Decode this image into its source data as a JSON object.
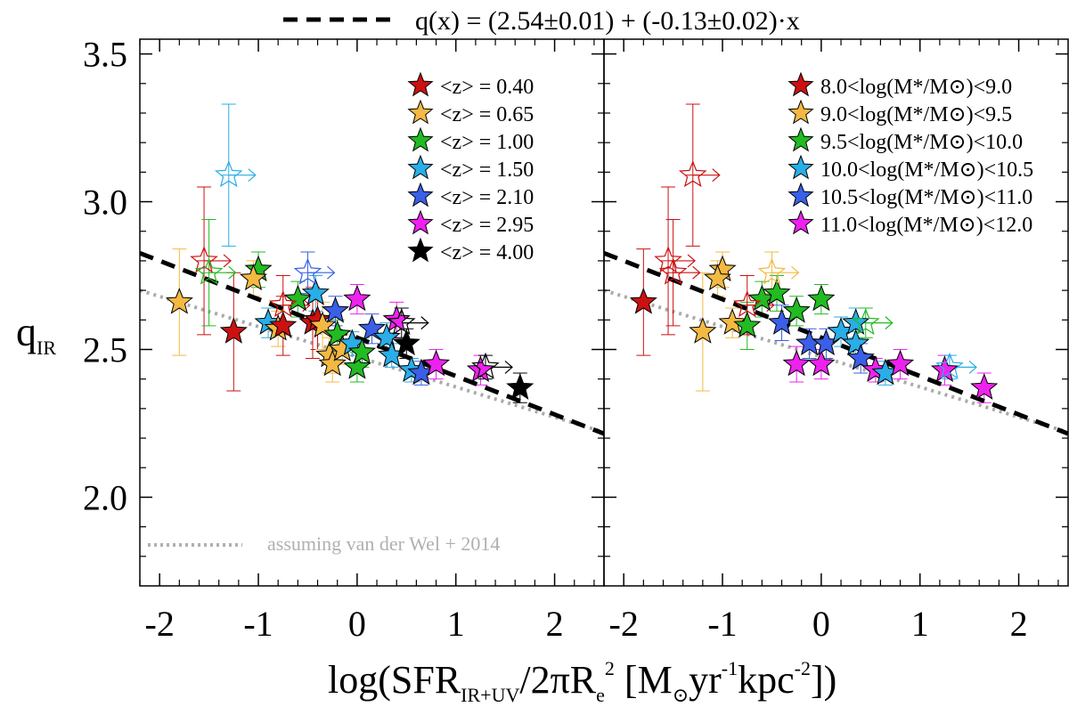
{
  "figure": {
    "fit_legend": "q(x) = (2.54±0.01) + (-0.13±0.02)·x",
    "ylabel_main": "q",
    "ylabel_sub": "IR",
    "xlabel_parts": [
      {
        "t": "log(SFR",
        "s": "n"
      },
      {
        "t": "IR+UV",
        "s": "sub"
      },
      {
        "t": "/2πR",
        "s": "n"
      },
      {
        "t": "e",
        "s": "sub"
      },
      {
        "t": "2",
        "s": "sup"
      },
      {
        "t": " [M",
        "s": "n"
      },
      {
        "t": "⊙",
        "s": "sub"
      },
      {
        "t": "yr",
        "s": "n"
      },
      {
        "t": "-1",
        "s": "sup"
      },
      {
        "t": "kpc",
        "s": "n"
      },
      {
        "t": "-2",
        "s": "sup"
      },
      {
        "t": "])",
        "s": "n"
      }
    ],
    "dotted_note": "assuming van der Wel + 2014"
  },
  "chart_data": [
    {
      "type": "scatter",
      "panel": "left",
      "xlim": [
        -2.2,
        2.5
      ],
      "ylim": [
        1.7,
        3.55
      ],
      "xticks": [
        -2,
        -1,
        0,
        1,
        2
      ],
      "xtick_labels": [
        "-2",
        "-1",
        "0",
        "1",
        "2"
      ],
      "yticks": [
        2.0,
        2.5,
        3.0,
        3.5
      ],
      "ytick_labels": [
        "2.0",
        "2.5",
        "3.0",
        "3.5"
      ],
      "fit_line": {
        "intercept": 2.54,
        "slope": -0.13,
        "style": "dashed",
        "color": "#000000"
      },
      "dotted_line": {
        "points": [
          [
            -2.2,
            2.7
          ],
          [
            2.5,
            2.22
          ]
        ],
        "color": "#aaaaaa"
      },
      "legend": [
        {
          "label": "<z> = 0.40",
          "color": "#cc1111"
        },
        {
          "label": "<z> = 0.65",
          "color": "#f4b942"
        },
        {
          "label": "<z> = 1.00",
          "color": "#22bb22"
        },
        {
          "label": "<z> = 1.50",
          "color": "#29aee8"
        },
        {
          "label": "<z> = 2.10",
          "color": "#3a5fe8"
        },
        {
          "label": "<z> = 2.95",
          "color": "#ee22ee"
        },
        {
          "label": "<z> = 4.00",
          "color": "#000000"
        }
      ],
      "points": [
        {
          "x": -1.8,
          "y": 2.66,
          "err": 0.18,
          "color": "#f4b942",
          "filled": true
        },
        {
          "x": -1.25,
          "y": 2.56,
          "err": 0.2,
          "color": "#cc1111",
          "filled": true
        },
        {
          "x": -1.0,
          "y": 2.77,
          "err": 0.06,
          "color": "#22bb22",
          "filled": true
        },
        {
          "x": -1.05,
          "y": 2.74,
          "err": 0.06,
          "color": "#f4b942",
          "filled": true
        },
        {
          "x": -0.9,
          "y": 2.59,
          "err": 0.05,
          "color": "#29aee8",
          "filled": true
        },
        {
          "x": -0.8,
          "y": 2.57,
          "err": 0.06,
          "color": "#f4b942",
          "filled": true
        },
        {
          "x": -0.75,
          "y": 2.58,
          "err": 0.1,
          "color": "#cc1111",
          "filled": true
        },
        {
          "x": -0.6,
          "y": 2.67,
          "err": 0.06,
          "color": "#22bb22",
          "filled": true
        },
        {
          "x": -0.45,
          "y": 2.59,
          "err": 0.12,
          "color": "#cc1111",
          "filled": true
        },
        {
          "x": -0.4,
          "y": 2.6,
          "err": 0.1,
          "color": "#cc1111",
          "filled": true
        },
        {
          "x": -0.42,
          "y": 2.69,
          "err": 0.06,
          "color": "#29aee8",
          "filled": true
        },
        {
          "x": -0.35,
          "y": 2.58,
          "err": 0.08,
          "color": "#f4b942",
          "filled": true
        },
        {
          "x": -0.28,
          "y": 2.48,
          "err": 0.06,
          "color": "#f4b942",
          "filled": true
        },
        {
          "x": -0.25,
          "y": 2.45,
          "err": 0.06,
          "color": "#f4b942",
          "filled": true
        },
        {
          "x": -0.2,
          "y": 2.55,
          "err": 0.05,
          "color": "#22bb22",
          "filled": true
        },
        {
          "x": -0.22,
          "y": 2.63,
          "err": 0.05,
          "color": "#3a5fe8",
          "filled": true
        },
        {
          "x": -0.15,
          "y": 2.5,
          "err": 0.05,
          "color": "#f4b942",
          "filled": true
        },
        {
          "x": -0.05,
          "y": 2.52,
          "err": 0.04,
          "color": "#29aee8",
          "filled": true
        },
        {
          "x": 0.0,
          "y": 2.44,
          "err": 0.05,
          "color": "#22bb22",
          "filled": true
        },
        {
          "x": 0.05,
          "y": 2.49,
          "err": 0.05,
          "color": "#22bb22",
          "filled": true
        },
        {
          "x": 0.0,
          "y": 2.67,
          "err": 0.05,
          "color": "#ee22ee",
          "filled": true
        },
        {
          "x": 0.15,
          "y": 2.57,
          "err": 0.05,
          "color": "#3a5fe8",
          "filled": true
        },
        {
          "x": 0.3,
          "y": 2.54,
          "err": 0.05,
          "color": "#29aee8",
          "filled": true
        },
        {
          "x": 0.35,
          "y": 2.48,
          "err": 0.04,
          "color": "#29aee8",
          "filled": true
        },
        {
          "x": 0.4,
          "y": 2.6,
          "err": 0.06,
          "color": "#ee22ee",
          "filled": true
        },
        {
          "x": 0.5,
          "y": 2.52,
          "err": 0.05,
          "color": "#000000",
          "filled": true
        },
        {
          "x": 0.55,
          "y": 2.43,
          "err": 0.04,
          "color": "#29aee8",
          "filled": true
        },
        {
          "x": 0.65,
          "y": 2.42,
          "err": 0.04,
          "color": "#3a5fe8",
          "filled": true
        },
        {
          "x": 0.8,
          "y": 2.45,
          "err": 0.05,
          "color": "#ee22ee",
          "filled": true
        },
        {
          "x": 1.25,
          "y": 2.43,
          "err": 0.05,
          "color": "#ee22ee",
          "filled": true
        },
        {
          "x": 1.65,
          "y": 2.37,
          "err": 0.05,
          "color": "#000000",
          "filled": true
        },
        {
          "x": -1.3,
          "y": 3.09,
          "err": 0.24,
          "color": "#29aee8",
          "filled": false
        },
        {
          "x": -1.55,
          "y": 2.8,
          "err": 0.25,
          "color": "#cc1111",
          "filled": false
        },
        {
          "x": -1.5,
          "y": 2.76,
          "err": 0.18,
          "color": "#22bb22",
          "filled": false
        },
        {
          "x": -0.5,
          "y": 2.76,
          "err": 0.07,
          "color": "#3a5fe8",
          "filled": false
        },
        {
          "x": -0.75,
          "y": 2.65,
          "err": 0.1,
          "color": "#cc1111",
          "filled": false
        },
        {
          "x": 0.45,
          "y": 2.59,
          "err": 0.05,
          "color": "#000000",
          "filled": false
        },
        {
          "x": 1.3,
          "y": 2.44,
          "err": 0.04,
          "color": "#000000",
          "filled": false
        }
      ]
    },
    {
      "type": "scatter",
      "panel": "right",
      "xlim": [
        -2.2,
        2.5
      ],
      "ylim": [
        1.7,
        3.55
      ],
      "xticks": [
        -2,
        -1,
        0,
        1,
        2
      ],
      "xtick_labels": [
        "-2",
        "-1",
        "0",
        "1",
        "2"
      ],
      "yticks": [
        2.0,
        2.5,
        3.0,
        3.5
      ],
      "fit_line": {
        "intercept": 2.54,
        "slope": -0.13,
        "style": "dashed",
        "color": "#000000"
      },
      "dotted_line": {
        "points": [
          [
            -2.2,
            2.7
          ],
          [
            2.5,
            2.22
          ]
        ],
        "color": "#aaaaaa"
      },
      "legend": [
        {
          "label": "8.0<log(M*/M⊙)<9.0",
          "color": "#cc1111"
        },
        {
          "label": "9.0<log(M*/M⊙)<9.5",
          "color": "#f4b942"
        },
        {
          "label": "9.5<log(M*/M⊙)<10.0",
          "color": "#22bb22"
        },
        {
          "label": "10.0<log(M*/M⊙)<10.5",
          "color": "#29aee8"
        },
        {
          "label": "10.5<log(M*/M⊙)<11.0",
          "color": "#3a5fe8"
        },
        {
          "label": "11.0<log(M*/M⊙)<12.0",
          "color": "#ee22ee"
        }
      ],
      "points": [
        {
          "x": -1.8,
          "y": 2.66,
          "err": 0.18,
          "color": "#cc1111",
          "filled": true
        },
        {
          "x": -1.0,
          "y": 2.77,
          "err": 0.06,
          "color": "#f4b942",
          "filled": true
        },
        {
          "x": -1.05,
          "y": 2.74,
          "err": 0.06,
          "color": "#f4b942",
          "filled": true
        },
        {
          "x": -1.2,
          "y": 2.56,
          "err": 0.2,
          "color": "#f4b942",
          "filled": true
        },
        {
          "x": -0.9,
          "y": 2.59,
          "err": 0.05,
          "color": "#f4b942",
          "filled": true
        },
        {
          "x": -0.75,
          "y": 2.58,
          "err": 0.08,
          "color": "#22bb22",
          "filled": true
        },
        {
          "x": -0.6,
          "y": 2.67,
          "err": 0.06,
          "color": "#22bb22",
          "filled": true
        },
        {
          "x": -0.45,
          "y": 2.69,
          "err": 0.06,
          "color": "#22bb22",
          "filled": true
        },
        {
          "x": -0.4,
          "y": 2.59,
          "err": 0.06,
          "color": "#3a5fe8",
          "filled": true
        },
        {
          "x": -0.25,
          "y": 2.63,
          "err": 0.05,
          "color": "#22bb22",
          "filled": true
        },
        {
          "x": -0.25,
          "y": 2.45,
          "err": 0.06,
          "color": "#ee22ee",
          "filled": true
        },
        {
          "x": -0.12,
          "y": 2.52,
          "err": 0.05,
          "color": "#3a5fe8",
          "filled": true
        },
        {
          "x": 0.0,
          "y": 2.67,
          "err": 0.05,
          "color": "#22bb22",
          "filled": true
        },
        {
          "x": 0.0,
          "y": 2.45,
          "err": 0.05,
          "color": "#ee22ee",
          "filled": true
        },
        {
          "x": 0.05,
          "y": 2.52,
          "err": 0.05,
          "color": "#3a5fe8",
          "filled": true
        },
        {
          "x": 0.2,
          "y": 2.56,
          "err": 0.05,
          "color": "#29aee8",
          "filled": true
        },
        {
          "x": 0.35,
          "y": 2.59,
          "err": 0.05,
          "color": "#29aee8",
          "filled": true
        },
        {
          "x": 0.35,
          "y": 2.52,
          "err": 0.04,
          "color": "#29aee8",
          "filled": true
        },
        {
          "x": 0.4,
          "y": 2.47,
          "err": 0.05,
          "color": "#3a5fe8",
          "filled": true
        },
        {
          "x": 0.55,
          "y": 2.43,
          "err": 0.04,
          "color": "#ee22ee",
          "filled": true
        },
        {
          "x": 0.65,
          "y": 2.42,
          "err": 0.04,
          "color": "#29aee8",
          "filled": true
        },
        {
          "x": 0.8,
          "y": 2.45,
          "err": 0.05,
          "color": "#ee22ee",
          "filled": true
        },
        {
          "x": 1.25,
          "y": 2.43,
          "err": 0.05,
          "color": "#ee22ee",
          "filled": true
        },
        {
          "x": 1.65,
          "y": 2.37,
          "err": 0.05,
          "color": "#ee22ee",
          "filled": true
        },
        {
          "x": -1.3,
          "y": 3.09,
          "err": 0.24,
          "color": "#cc1111",
          "filled": false
        },
        {
          "x": -1.55,
          "y": 2.8,
          "err": 0.25,
          "color": "#cc1111",
          "filled": false
        },
        {
          "x": -1.5,
          "y": 2.76,
          "err": 0.18,
          "color": "#cc1111",
          "filled": false
        },
        {
          "x": -0.5,
          "y": 2.76,
          "err": 0.07,
          "color": "#f4b942",
          "filled": false
        },
        {
          "x": -0.75,
          "y": 2.65,
          "err": 0.1,
          "color": "#cc1111",
          "filled": false
        },
        {
          "x": 0.45,
          "y": 2.59,
          "err": 0.05,
          "color": "#22bb22",
          "filled": false
        },
        {
          "x": 1.3,
          "y": 2.44,
          "err": 0.04,
          "color": "#29aee8",
          "filled": false
        }
      ]
    }
  ]
}
